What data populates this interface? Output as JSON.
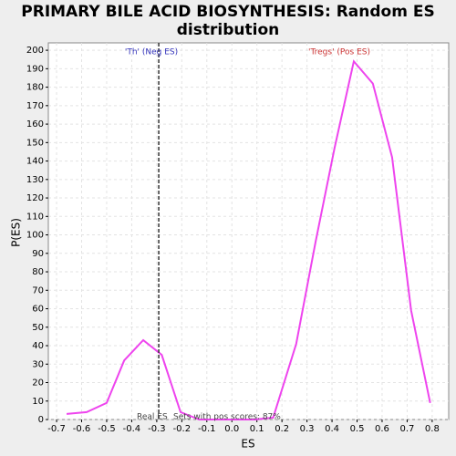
{
  "chart_data": {
    "type": "line",
    "title": [
      "PRIMARY BILE ACID BIOSYNTHESIS: Random ES",
      "distribution"
    ],
    "x_label": "ES",
    "y_label": "P(ES)",
    "x": [
      -0.66,
      -0.58,
      -0.5,
      -0.43,
      -0.354,
      -0.28,
      -0.205,
      -0.13,
      -0.06,
      0.015,
      0.09,
      0.165,
      0.257,
      0.334,
      0.41,
      0.487,
      0.563,
      0.64,
      0.716,
      0.792
    ],
    "series": [
      {
        "name": "P(ES)",
        "color": "#ee44ee",
        "values": [
          3,
          4,
          9,
          32,
          43,
          35,
          4,
          0,
          0,
          0,
          0,
          1,
          41,
          96,
          147,
          194,
          182,
          142,
          59,
          9
        ]
      }
    ],
    "xlim": [
      -0.733,
      0.866
    ],
    "ylim": [
      0,
      204
    ],
    "xticks": [
      -0.7,
      -0.6,
      -0.5,
      -0.4,
      -0.3,
      -0.2,
      -0.1,
      {
        "value": 0,
        "label": "0.0"
      },
      0.1,
      0.2,
      0.3,
      0.4,
      0.5,
      0.6,
      0.7,
      0.8
    ],
    "yticks": [
      0,
      10,
      20,
      30,
      40,
      50,
      60,
      70,
      80,
      90,
      100,
      110,
      120,
      130,
      140,
      150,
      160,
      170,
      180,
      190,
      200
    ],
    "grid": true,
    "real_es": -0.292,
    "annotations": {
      "neg": "'Th' (Neg ES)",
      "pos": "'Tregs' (Pos ES)",
      "real_es": "Real ES",
      "pos_scores": "Sets with pos scores: 87%"
    }
  }
}
